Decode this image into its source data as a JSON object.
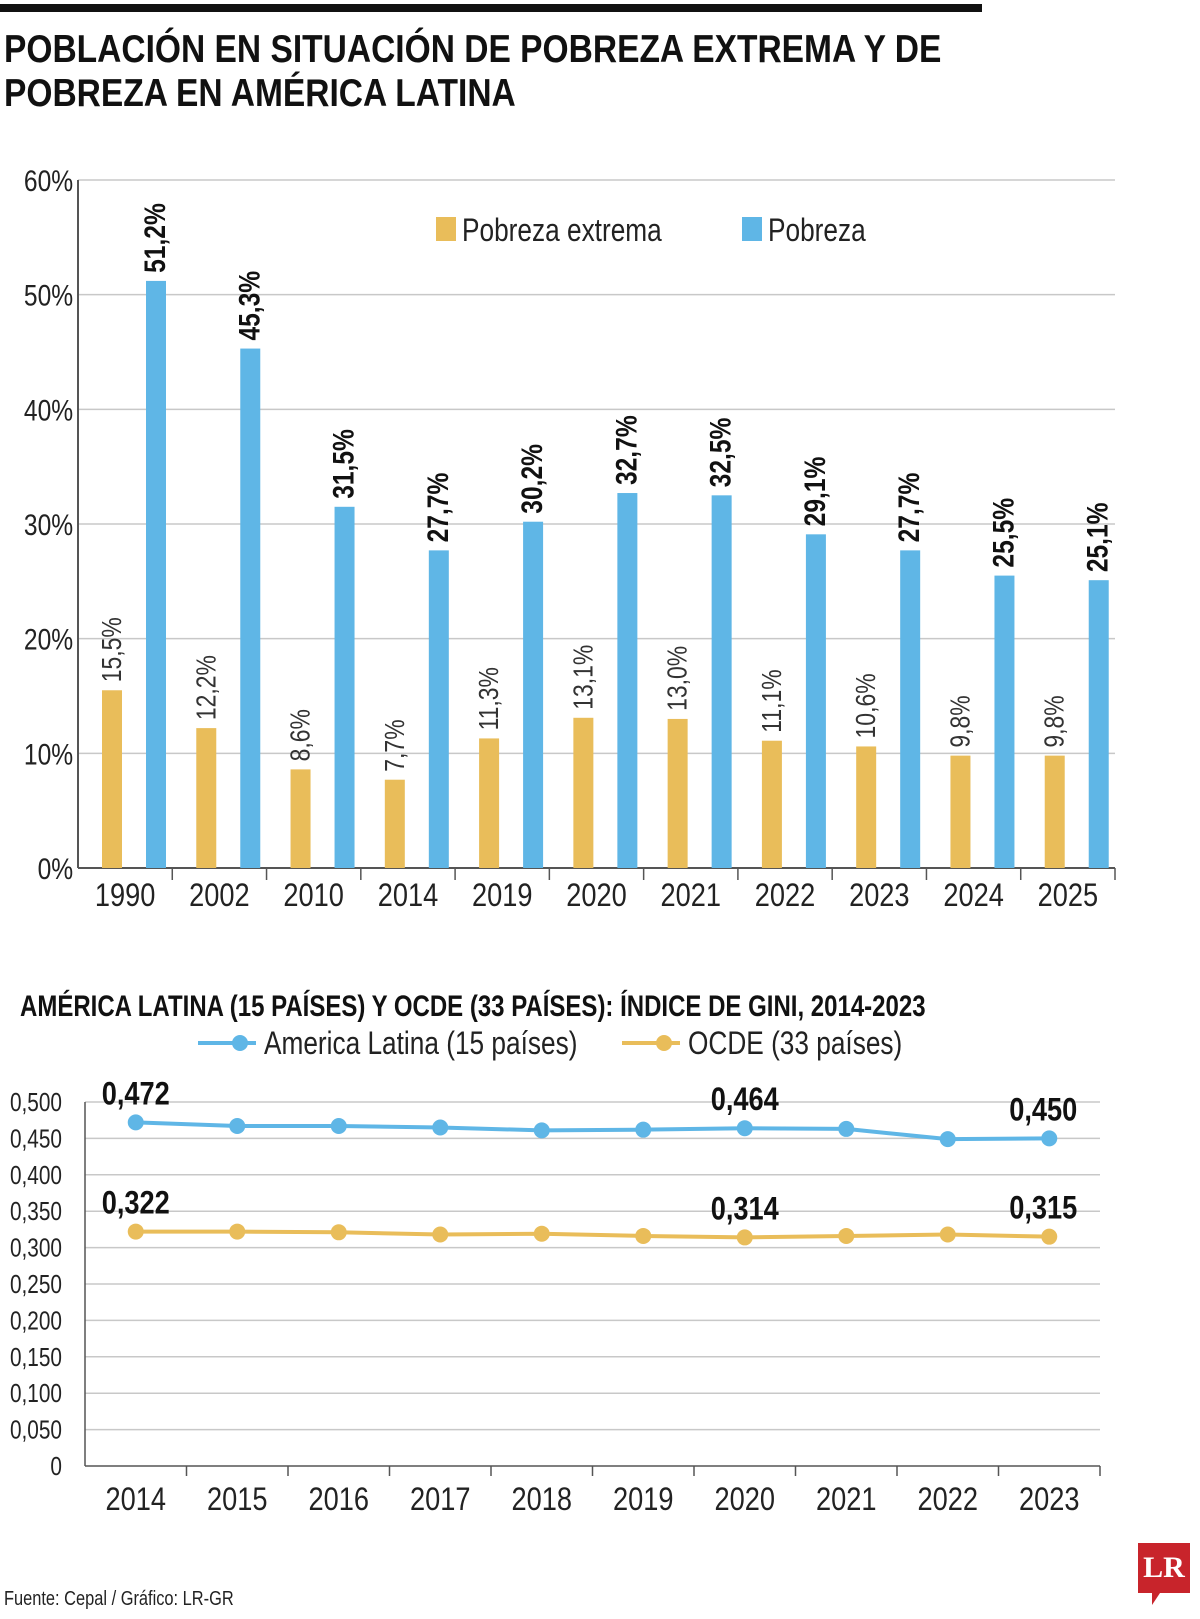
{
  "title": "POBLACIÓN EN SITUACIÓN DE POBREZA EXTREMA Y DE POBREZA EN AMÉRICA LATINA",
  "subtitle": "AMÉRICA LATINA (15 PAÍSES) Y OCDE (33 PAÍSES): ÍNDICE DE GINI, 2014-2023",
  "source": "Fuente: Cepal / Gráfico: LR-GR",
  "logo": "LR",
  "chart_data": [
    {
      "type": "bar",
      "categories": [
        "1990",
        "2002",
        "2010",
        "2014",
        "2019",
        "2020",
        "2021",
        "2022",
        "2023",
        "2024",
        "2025"
      ],
      "series": [
        {
          "name": "Pobreza extrema",
          "color": "#e9bd5a",
          "values": [
            15.5,
            12.2,
            8.6,
            7.7,
            11.3,
            13.1,
            13.0,
            11.1,
            10.6,
            9.8,
            9.8
          ],
          "labels": [
            "15,5%",
            "12,2%",
            "8,6%",
            "7,7%",
            "11,3%",
            "13,1%",
            "13,0%",
            "11,1%",
            "10,6%",
            "9,8%",
            "9,8%"
          ]
        },
        {
          "name": "Pobreza",
          "color": "#5fb6e6",
          "values": [
            51.2,
            45.3,
            31.5,
            27.7,
            30.2,
            32.7,
            32.5,
            29.1,
            27.7,
            25.5,
            25.1
          ],
          "labels": [
            "51,2%",
            "45,3%",
            "31,5%",
            "27,7%",
            "30,2%",
            "32,7%",
            "32,5%",
            "29,1%",
            "27,7%",
            "25,5%",
            "25,1%"
          ]
        }
      ],
      "ylim": [
        0,
        60
      ],
      "yticks": [
        "0%",
        "10%",
        "20%",
        "30%",
        "40%",
        "50%",
        "60%"
      ],
      "grid": true,
      "legend": "top"
    },
    {
      "type": "line",
      "categories": [
        "2014",
        "2015",
        "2016",
        "2017",
        "2018",
        "2019",
        "2020",
        "2021",
        "2022",
        "2023"
      ],
      "series": [
        {
          "name": "America Latina (15 países)",
          "color": "#5fb6e6",
          "values": [
            0.472,
            0.467,
            0.467,
            0.465,
            0.461,
            0.462,
            0.464,
            0.463,
            0.449,
            0.45
          ],
          "labels": {
            "0": "0,472",
            "6": "0,464",
            "9": "0,450"
          }
        },
        {
          "name": "OCDE (33 países)",
          "color": "#e9bd5a",
          "values": [
            0.322,
            0.322,
            0.321,
            0.318,
            0.319,
            0.316,
            0.314,
            0.316,
            0.318,
            0.315
          ],
          "labels": {
            "0": "0,322",
            "6": "0,314",
            "9": "0,315"
          }
        }
      ],
      "ylim": [
        0,
        0.5
      ],
      "yticks": [
        "0",
        "0,050",
        "0,100",
        "0,150",
        "0,200",
        "0,250",
        "0,300",
        "0,350",
        "0,400",
        "0,450",
        "0,500"
      ],
      "grid": true,
      "legend": "top"
    }
  ]
}
